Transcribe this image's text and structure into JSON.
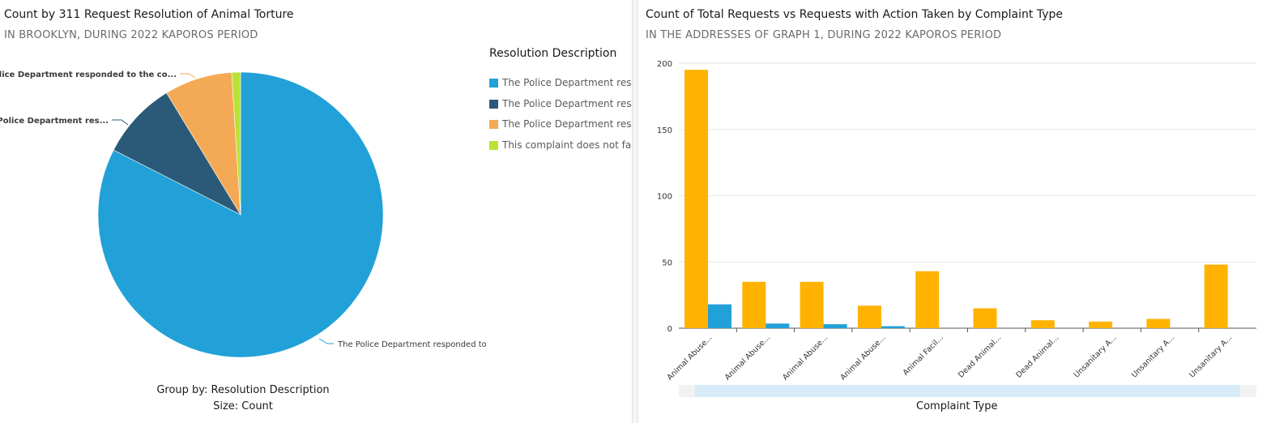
{
  "left": {
    "title": "Count by 311 Request Resolution of Animal Torture",
    "subtitle": "IN BROOKLYN,  DURING 2022 KAPOROS PERIOD",
    "legend_title": "Resolution Description",
    "legend_items": [
      {
        "label": "The Police Department resp...",
        "color": "#22a0d8"
      },
      {
        "label": "The Police Department resp...",
        "color": "#2a5a78"
      },
      {
        "label": "The Police Department resp...",
        "color": "#f4a954"
      },
      {
        "label": "This complaint does not fal...",
        "color": "#b9e236"
      }
    ],
    "footer_line1": "Group by: Resolution Description",
    "footer_line2": "Size: Count"
  },
  "right": {
    "title": "Count of Total Requests vs Requests with Action Taken by Complaint Type",
    "subtitle": "IN THE ADDRESSES OF GRAPH 1, DURING 2022 KAPOROS PERIOD",
    "x_axis_title": "Complaint Type"
  },
  "chart_data": [
    {
      "type": "pie",
      "group_by": "Resolution Description",
      "size": "Count",
      "slices": [
        {
          "label": "The Police Department responded to",
          "value": 82.5,
          "color": "#22a0d8"
        },
        {
          "label": "The Police Department res...",
          "value": 8.8,
          "color": "#2a5a78"
        },
        {
          "label": "The Police Department responded to the co...",
          "value": 7.7,
          "color": "#f4a954"
        },
        {
          "label": "This complaint does not fal...",
          "value": 1.0,
          "color": "#b9e236"
        }
      ]
    },
    {
      "type": "bar",
      "categories": [
        "Animal Abuse...",
        "Animal Abuse...",
        "Animal Abuse...",
        "Animal Abuse...",
        "Animal Facil...",
        "Dead Animal...",
        "Dead Animal...",
        "Unsanitary A...",
        "Unsanitary A...",
        "Unsanitary A..."
      ],
      "series": [
        {
          "values": [
            195,
            35,
            35,
            17,
            43,
            15,
            6,
            5,
            7,
            48
          ],
          "color": "#ffb300"
        },
        {
          "values": [
            18,
            3.5,
            3,
            1.5,
            0,
            0,
            0,
            0,
            0,
            0
          ],
          "color": "#22a0d8"
        }
      ],
      "xlabel": "Complaint Type",
      "ylim": [
        0,
        200
      ],
      "yticks": [
        0,
        50,
        100,
        150,
        200
      ],
      "grid": true
    }
  ]
}
